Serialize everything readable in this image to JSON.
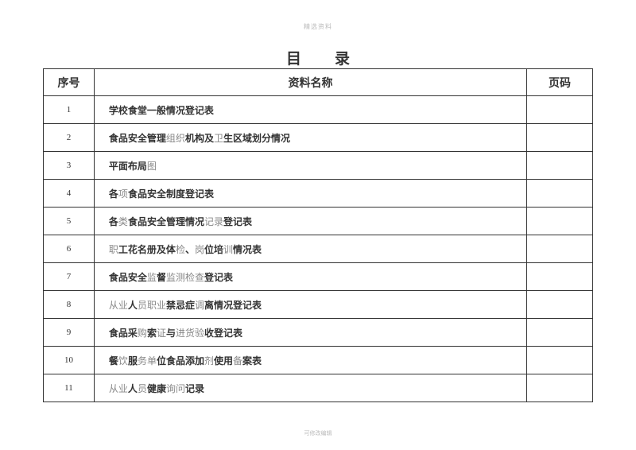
{
  "header": "精选资料",
  "title": "目录",
  "footer": "可修改编辑",
  "table": {
    "columns": {
      "seq": "序号",
      "name": "资料名称",
      "page": "页码"
    },
    "rows": [
      {
        "seq": "1",
        "name_parts": [
          {
            "t": "学校食堂一般情况登记表",
            "bold": true
          }
        ]
      },
      {
        "seq": "2",
        "name_parts": [
          {
            "t": "食品安全管理",
            "bold": true
          },
          {
            "t": "组织",
            "bold": false
          },
          {
            "t": "机构及",
            "bold": true
          },
          {
            "t": "卫",
            "bold": false
          },
          {
            "t": "生区域划分情况",
            "bold": true
          }
        ]
      },
      {
        "seq": "3",
        "name_parts": [
          {
            "t": "平面布局",
            "bold": true
          },
          {
            "t": "图",
            "bold": false
          }
        ]
      },
      {
        "seq": "4",
        "name_parts": [
          {
            "t": "各",
            "bold": true
          },
          {
            "t": "项",
            "bold": false
          },
          {
            "t": "食品安全制度登记表",
            "bold": true
          }
        ]
      },
      {
        "seq": "5",
        "name_parts": [
          {
            "t": "各",
            "bold": true
          },
          {
            "t": "类",
            "bold": false
          },
          {
            "t": "食品安全管理情况",
            "bold": true
          },
          {
            "t": "记录",
            "bold": false
          },
          {
            "t": "登记表",
            "bold": true
          }
        ]
      },
      {
        "seq": "6",
        "name_parts": [
          {
            "t": "职",
            "bold": false
          },
          {
            "t": "工花名册及体",
            "bold": true
          },
          {
            "t": "检",
            "bold": false
          },
          {
            "t": "、",
            "bold": true
          },
          {
            "t": "岗",
            "bold": false
          },
          {
            "t": "位培",
            "bold": true
          },
          {
            "t": "训",
            "bold": false
          },
          {
            "t": "情况表",
            "bold": true
          }
        ]
      },
      {
        "seq": "7",
        "name_parts": [
          {
            "t": "食品安全",
            "bold": true
          },
          {
            "t": "监",
            "bold": false
          },
          {
            "t": "督",
            "bold": true
          },
          {
            "t": "监测检查",
            "bold": false
          },
          {
            "t": "登记表",
            "bold": true
          }
        ]
      },
      {
        "seq": "8",
        "name_parts": [
          {
            "t": "从业",
            "bold": false
          },
          {
            "t": "人",
            "bold": true
          },
          {
            "t": "员职业",
            "bold": false
          },
          {
            "t": "禁忌症",
            "bold": true
          },
          {
            "t": "调",
            "bold": false
          },
          {
            "t": "离情况登记表",
            "bold": true
          }
        ]
      },
      {
        "seq": "9",
        "name_parts": [
          {
            "t": "食品采",
            "bold": true
          },
          {
            "t": "购",
            "bold": false
          },
          {
            "t": "索",
            "bold": true
          },
          {
            "t": "证",
            "bold": false
          },
          {
            "t": "与",
            "bold": true
          },
          {
            "t": "进货验",
            "bold": false
          },
          {
            "t": "收登记表",
            "bold": true
          }
        ]
      },
      {
        "seq": "10",
        "name_parts": [
          {
            "t": "餐",
            "bold": true
          },
          {
            "t": "饮",
            "bold": false
          },
          {
            "t": "服",
            "bold": true
          },
          {
            "t": "务单",
            "bold": false
          },
          {
            "t": "位食品添加",
            "bold": true
          },
          {
            "t": "剂",
            "bold": false
          },
          {
            "t": "使用",
            "bold": true
          },
          {
            "t": "备",
            "bold": false
          },
          {
            "t": "案表",
            "bold": true
          }
        ]
      },
      {
        "seq": "11",
        "name_parts": [
          {
            "t": "从业",
            "bold": false
          },
          {
            "t": "人",
            "bold": true
          },
          {
            "t": "员",
            "bold": false
          },
          {
            "t": "健康",
            "bold": true
          },
          {
            "t": "询问",
            "bold": false
          },
          {
            "t": "记录",
            "bold": true
          }
        ]
      }
    ]
  }
}
